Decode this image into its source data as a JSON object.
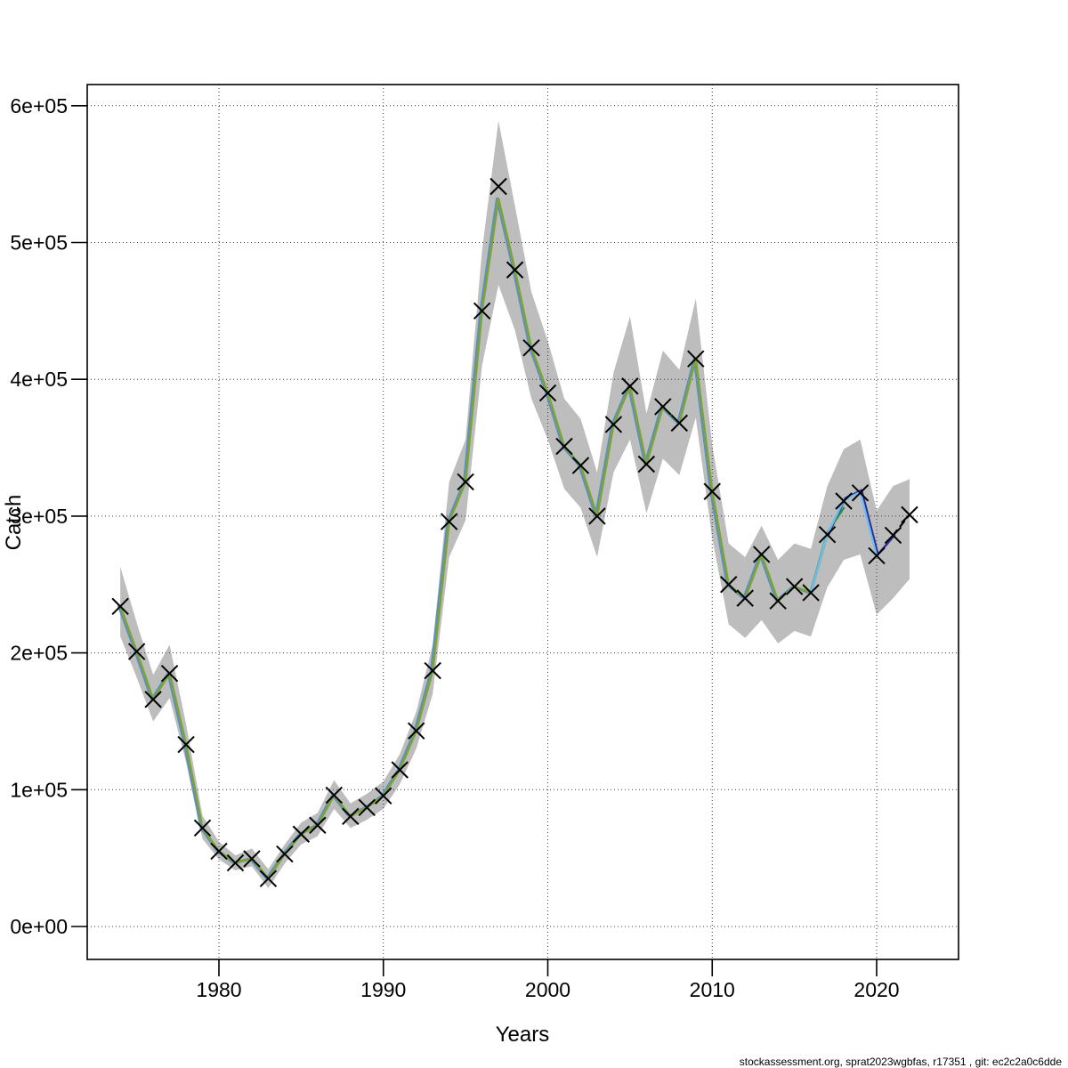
{
  "footer": {
    "text": "stockassessment.org, sprat2023wgbfas, r17351 , git: ec2c2a0c6dde"
  },
  "chart_data": {
    "type": "line",
    "title": "",
    "xlabel": "Years",
    "ylabel": "Catch",
    "grid": true,
    "legend": "none",
    "xlim": [
      1972.5,
      2024.5
    ],
    "ylim": [
      0,
      620000
    ],
    "x_ticks": [
      {
        "label": "1980",
        "year": 1980
      },
      {
        "label": "1990",
        "year": 1990
      },
      {
        "label": "2000",
        "year": 2000
      },
      {
        "label": "2010",
        "year": 2010
      },
      {
        "label": "2020",
        "year": 2020
      }
    ],
    "y_ticks": [
      {
        "label": "0e+00",
        "value": 0
      },
      {
        "label": "1e+05",
        "value": 100000
      },
      {
        "label": "2e+05",
        "value": 200000
      },
      {
        "label": "3e+05",
        "value": 300000
      },
      {
        "label": "4e+05",
        "value": 400000
      },
      {
        "label": "5e+05",
        "value": 500000
      },
      {
        "label": "6e+05",
        "value": 600000
      }
    ],
    "band_color": "#bdbdbd",
    "marker": {
      "shape": "x",
      "color": "#000000",
      "half_size": 9,
      "stroke_width": 2
    },
    "years": [
      1974,
      1975,
      1976,
      1977,
      1978,
      1979,
      1980,
      1981,
      1982,
      1983,
      1984,
      1985,
      1986,
      1987,
      1988,
      1989,
      1990,
      1991,
      1992,
      1993,
      1994,
      1995,
      1996,
      1997,
      1998,
      1999,
      2000,
      2001,
      2002,
      2003,
      2004,
      2005,
      2006,
      2007,
      2008,
      2009,
      2010,
      2011,
      2012,
      2013,
      2014,
      2015,
      2016,
      2017,
      2018,
      2019,
      2020,
      2021,
      2022
    ],
    "catch_observed": [
      234000,
      201000,
      166000,
      185000,
      133000,
      72000,
      55000,
      46500,
      49500,
      35000,
      53000,
      67500,
      74000,
      96000,
      80500,
      87000,
      95500,
      114500,
      143000,
      187000,
      296000,
      325000,
      450000,
      541000,
      480000,
      423000,
      390000,
      351000,
      337000,
      300000,
      367000,
      395000,
      338000,
      380000,
      368000,
      415000,
      318000,
      250000,
      240000,
      272000,
      238000,
      248500,
      244000,
      286500,
      311000,
      317000,
      271000,
      286000,
      301000
    ],
    "catch_fit": [
      234000,
      201000,
      166000,
      185000,
      133000,
      72000,
      55000,
      46500,
      49500,
      35000,
      53000,
      67500,
      74000,
      96000,
      80500,
      87000,
      95500,
      114500,
      143000,
      187000,
      296000,
      325000,
      450000,
      532000,
      480000,
      423000,
      390000,
      351000,
      337000,
      300000,
      367000,
      395000,
      338000,
      380000,
      368000,
      415000,
      318000,
      250000,
      240000,
      272000,
      238000,
      248500,
      244000,
      286500,
      311000,
      317000,
      271000,
      286000,
      301000
    ],
    "band_low": [
      212000,
      182000,
      150000,
      167000,
      120000,
      64000,
      49000,
      41000,
      44000,
      28000,
      46000,
      60000,
      66000,
      86000,
      72000,
      78000,
      86000,
      104000,
      130000,
      170000,
      270000,
      297000,
      410000,
      469000,
      436000,
      386000,
      356000,
      320000,
      306000,
      270000,
      332000,
      356000,
      302000,
      342000,
      330000,
      372000,
      284000,
      221000,
      211000,
      224000,
      207000,
      216000,
      212000,
      248000,
      268000,
      272000,
      228000,
      240000,
      254000
    ],
    "band_high": [
      263000,
      222000,
      184000,
      206000,
      148000,
      81000,
      62000,
      52000,
      57000,
      42000,
      60000,
      76000,
      83000,
      107000,
      90000,
      97000,
      106000,
      126000,
      157000,
      206000,
      325000,
      356000,
      494000,
      589000,
      527000,
      464000,
      428000,
      386000,
      371000,
      332000,
      405000,
      446000,
      375000,
      421000,
      407000,
      459000,
      352000,
      280000,
      270000,
      293000,
      268000,
      280000,
      276000,
      322000,
      349000,
      356000,
      304000,
      322000,
      327000
    ],
    "series": [
      {
        "name": "fit-steelblue",
        "color": "#5a90c4",
        "width": 3.2,
        "dx": -1.5,
        "start_year": 1974,
        "end_year": 2016
      },
      {
        "name": "fit-olive-green",
        "color": "#7da336",
        "width": 2.6,
        "start_year": 1974,
        "end_year": 2017
      },
      {
        "name": "fit-navy",
        "color": "#2d2d91",
        "width": 2.4,
        "dx": 1.5,
        "start_year": 2017,
        "end_year": 2021,
        "values": [
          286500,
          313000,
          319000,
          272000,
          286000
        ]
      },
      {
        "name": "fit-dark-green",
        "color": "#2f8b4e",
        "width": 2.4,
        "start_year": 2016,
        "end_year": 2018,
        "values": [
          245000,
          288000,
          306000
        ]
      },
      {
        "name": "fit-light-blue",
        "color": "#6fbdf0",
        "width": 2.4,
        "start_year": 2016,
        "end_year": 2020,
        "values": [
          244000,
          287000,
          311500,
          317500,
          271000
        ]
      },
      {
        "name": "fit-current-dashed",
        "color": "#000000",
        "width": 2.2,
        "dash": "7 6",
        "start_year": 2021,
        "end_year": 2022,
        "values": [
          286000,
          301000
        ]
      }
    ]
  }
}
